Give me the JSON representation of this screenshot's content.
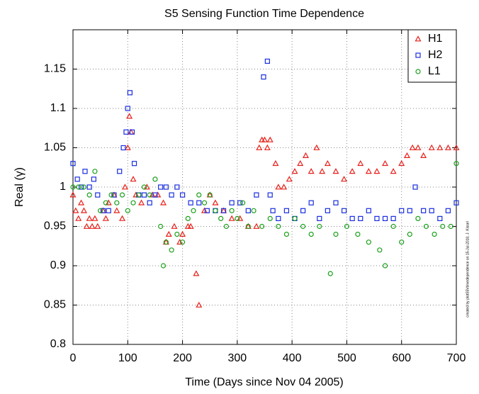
{
  "chart_data": {
    "type": "scatter",
    "title": "S5 Sensing Function Time Dependence",
    "xlabel": "Time (Days since Nov 04 2005)",
    "ylabel": "Real (γ)",
    "annotation": "created by plotS5Vtimedependence on 15-Jul-2010, J. Kissel",
    "xlim": [
      0,
      700
    ],
    "ylim": [
      0.8,
      1.2
    ],
    "xticks": [
      0,
      100,
      200,
      300,
      400,
      500,
      600,
      700
    ],
    "yticks": [
      0.8,
      0.85,
      0.9,
      0.95,
      1,
      1.05,
      1.1,
      1.15
    ],
    "grid": true,
    "legend": "upper right",
    "series": [
      {
        "name": "H1",
        "color": "#e8201a",
        "marker": "triangle",
        "x": [
          0,
          5,
          10,
          15,
          20,
          25,
          30,
          35,
          40,
          45,
          55,
          60,
          65,
          75,
          80,
          90,
          95,
          100,
          103,
          106,
          110,
          115,
          125,
          135,
          145,
          155,
          165,
          170,
          175,
          185,
          195,
          200,
          210,
          215,
          225,
          230,
          240,
          250,
          260,
          275,
          290,
          305,
          320,
          335,
          340,
          345,
          350,
          355,
          360,
          370,
          375,
          385,
          395,
          405,
          415,
          425,
          435,
          445,
          455,
          465,
          480,
          495,
          510,
          525,
          540,
          555,
          570,
          585,
          600,
          610,
          620,
          630,
          640,
          655,
          670,
          685,
          700
        ],
        "values": [
          0.99,
          0.97,
          0.96,
          0.98,
          0.97,
          0.95,
          0.96,
          0.95,
          0.96,
          0.95,
          0.97,
          0.96,
          0.98,
          0.99,
          0.97,
          0.96,
          1.0,
          1.05,
          1.09,
          1.07,
          1.01,
          0.99,
          0.98,
          1.0,
          0.99,
          0.99,
          0.98,
          0.93,
          0.94,
          0.95,
          0.93,
          0.94,
          0.95,
          0.95,
          0.89,
          0.85,
          0.97,
          0.99,
          0.98,
          0.97,
          0.96,
          0.96,
          0.95,
          0.95,
          1.05,
          1.06,
          1.06,
          1.05,
          1.06,
          1.03,
          1.0,
          1.0,
          1.01,
          1.02,
          1.03,
          1.04,
          1.02,
          1.05,
          1.02,
          1.03,
          1.02,
          1.01,
          1.02,
          1.03,
          1.02,
          1.02,
          1.03,
          1.02,
          1.03,
          1.04,
          1.05,
          1.05,
          1.04,
          1.05,
          1.05,
          1.05,
          1.05
        ]
      },
      {
        "name": "H2",
        "color": "#1a2ee0",
        "marker": "square",
        "x": [
          0,
          8,
          15,
          22,
          30,
          38,
          45,
          55,
          65,
          75,
          85,
          92,
          97,
          100,
          104,
          108,
          112,
          120,
          130,
          140,
          150,
          160,
          170,
          180,
          190,
          200,
          215,
          230,
          245,
          260,
          275,
          290,
          305,
          320,
          335,
          348,
          355,
          360,
          365,
          375,
          390,
          405,
          420,
          435,
          450,
          465,
          480,
          495,
          510,
          525,
          540,
          555,
          570,
          585,
          600,
          615,
          625,
          640,
          655,
          670,
          685,
          700
        ],
        "values": [
          1.03,
          1.01,
          1.0,
          1.02,
          1.0,
          1.01,
          0.99,
          0.97,
          0.97,
          0.99,
          1.02,
          1.05,
          1.07,
          1.1,
          1.12,
          1.07,
          1.03,
          0.99,
          0.99,
          0.98,
          0.99,
          1.0,
          1.0,
          0.99,
          1.0,
          0.99,
          0.98,
          0.98,
          0.97,
          0.97,
          0.97,
          0.98,
          0.98,
          0.97,
          0.99,
          1.14,
          1.16,
          0.99,
          0.97,
          0.96,
          0.97,
          0.96,
          0.97,
          0.98,
          0.96,
          0.97,
          0.98,
          0.97,
          0.96,
          0.96,
          0.97,
          0.96,
          0.96,
          0.96,
          0.97,
          0.97,
          1.0,
          0.97,
          0.97,
          0.96,
          0.97,
          0.98
        ]
      },
      {
        "name": "L1",
        "color": "#1aa01a",
        "marker": "circle",
        "x": [
          0,
          10,
          20,
          30,
          40,
          50,
          60,
          70,
          80,
          90,
          100,
          110,
          120,
          130,
          140,
          150,
          160,
          165,
          170,
          180,
          190,
          200,
          210,
          220,
          230,
          240,
          250,
          260,
          270,
          280,
          290,
          300,
          310,
          320,
          330,
          345,
          360,
          375,
          390,
          405,
          420,
          435,
          450,
          470,
          480,
          500,
          520,
          540,
          560,
          570,
          585,
          600,
          615,
          630,
          645,
          660,
          675,
          690,
          700
        ],
        "values": [
          1.0,
          1.0,
          1.0,
          0.99,
          1.02,
          0.97,
          0.98,
          0.99,
          0.98,
          0.99,
          0.97,
          0.98,
          0.99,
          1.0,
          0.99,
          1.01,
          0.95,
          0.9,
          0.93,
          0.92,
          0.94,
          0.93,
          0.96,
          0.97,
          0.99,
          0.98,
          0.99,
          0.97,
          0.96,
          0.95,
          0.97,
          0.96,
          0.98,
          0.95,
          0.97,
          0.95,
          0.96,
          0.95,
          0.94,
          0.96,
          0.95,
          0.94,
          0.95,
          0.89,
          0.94,
          0.95,
          0.94,
          0.93,
          0.92,
          0.9,
          0.95,
          0.93,
          0.94,
          0.96,
          0.95,
          0.94,
          0.95,
          0.95,
          1.03
        ]
      }
    ]
  }
}
